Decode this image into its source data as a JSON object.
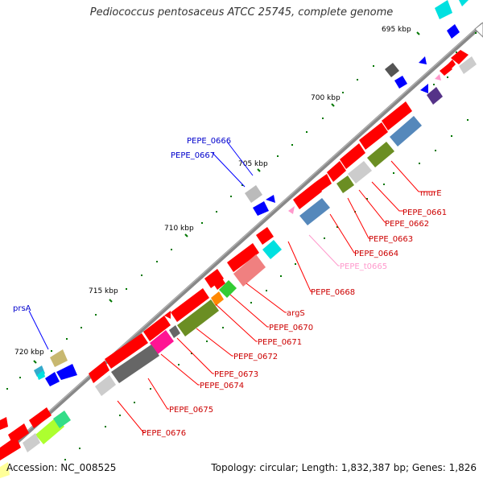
{
  "title": "Pediococcus pentosaceus ATCC 25745, complete genome",
  "footer": {
    "accession": "Accession: NC_008525",
    "stats": "Topology: circular; Length: 1,832,387 bp; Genes: 1,826"
  },
  "ticks": [
    "695 kbp",
    "700 kbp",
    "705 kbp",
    "710 kbp",
    "715 kbp",
    "720 kbp"
  ],
  "labels_right": [
    "murE",
    "PEPE_0661",
    "PEPE_0662",
    "PEPE_0663",
    "PEPE_0664",
    "PEPE_t0665",
    "PEPE_0668",
    "argS",
    "PEPE_0670",
    "PEPE_0671",
    "PEPE_0672",
    "PEPE_0673",
    "PEPE_0674",
    "PEPE_0675",
    "PEPE_0676"
  ],
  "labels_left": [
    "PEPE_0666",
    "PEPE_0667",
    "prsA"
  ],
  "colors": {
    "cds": "#ff0000",
    "trna": "#ff99cc",
    "reverse_cds": "#0000ff",
    "backbone": "#888888"
  }
}
